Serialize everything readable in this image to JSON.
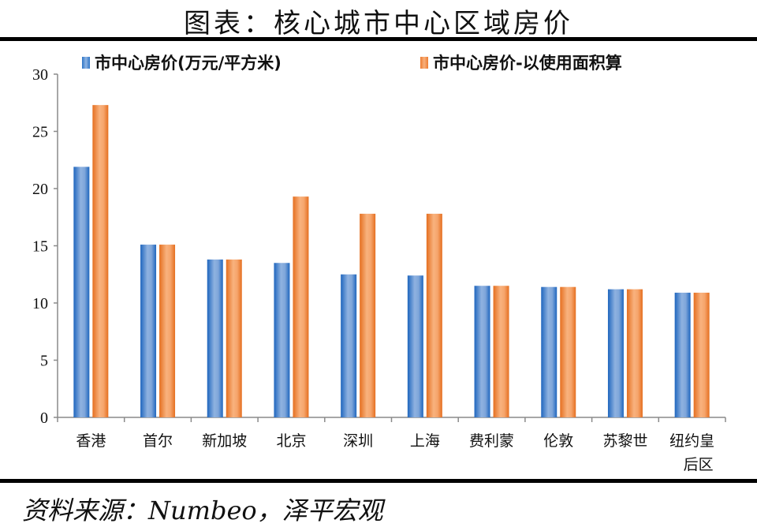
{
  "header": {
    "title": "图表：核心城市中心区域房价"
  },
  "legend": [
    {
      "label": "市中心房价(万元/平方米)",
      "color": "#2E75C6"
    },
    {
      "label": "市中心房价-以使用面积算",
      "color": "#ED7D31"
    }
  ],
  "footer": {
    "source": "资料来源：Numbeo，泽平宏观"
  },
  "chart_data": {
    "type": "bar",
    "title": "图表：核心城市中心区域房价",
    "xlabel": "",
    "ylabel": "",
    "ylim": [
      0,
      30
    ],
    "yticks": [
      0,
      5,
      10,
      15,
      20,
      25,
      30
    ],
    "grid": false,
    "legend_position": "top",
    "categories": [
      "香港",
      "首尔",
      "新加坡",
      "北京",
      "深圳",
      "上海",
      "费利蒙",
      "伦敦",
      "苏黎世",
      "纽约皇后区"
    ],
    "category_label_lines": [
      [
        "香港"
      ],
      [
        "首尔"
      ],
      [
        "新加坡"
      ],
      [
        "北京"
      ],
      [
        "深圳"
      ],
      [
        "上海"
      ],
      [
        "费利蒙"
      ],
      [
        "伦敦"
      ],
      [
        "苏黎世"
      ],
      [
        "纽约皇",
        "后区"
      ]
    ],
    "series": [
      {
        "name": "市中心房价(万元/平方米)",
        "color": "#2E75C6",
        "values": [
          21.9,
          15.1,
          13.8,
          13.5,
          12.5,
          12.4,
          11.5,
          11.4,
          11.2,
          10.9
        ]
      },
      {
        "name": "市中心房价-以使用面积算",
        "color": "#ED7D31",
        "values": [
          27.3,
          15.1,
          13.8,
          19.3,
          17.8,
          17.8,
          11.5,
          11.4,
          11.2,
          10.9
        ]
      }
    ]
  }
}
